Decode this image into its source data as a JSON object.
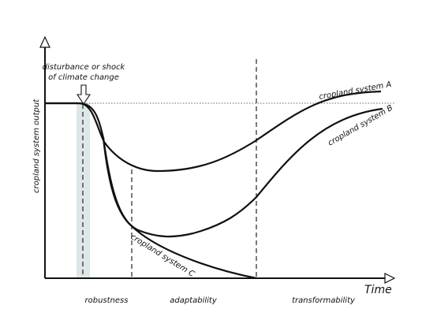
{
  "axes": {
    "y_label": "cropland system output",
    "x_label": "Time"
  },
  "annotation": {
    "line1": "disturbance or shock",
    "line2": "of climate change"
  },
  "curves": [
    {
      "label": "cropland system A"
    },
    {
      "label": "cropland system B"
    },
    {
      "label": "cropland system C"
    }
  ],
  "phases": [
    "robustness",
    "adaptability",
    "transformability"
  ]
}
